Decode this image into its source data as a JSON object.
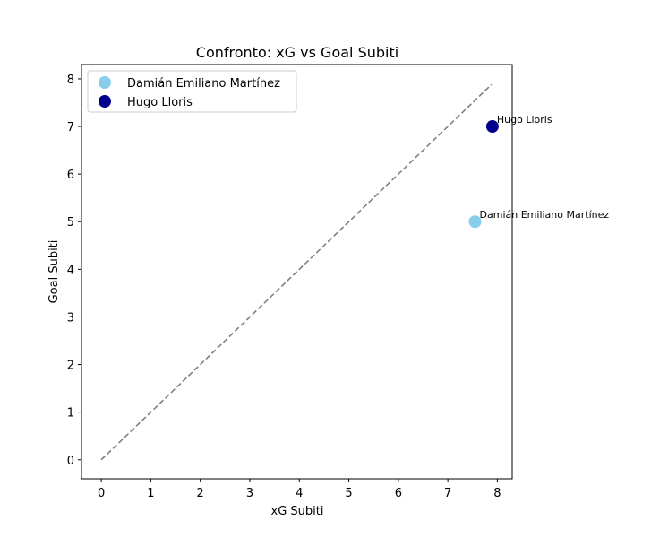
{
  "chart_data": {
    "type": "scatter",
    "title": "Confronto: xG vs Goal Subiti",
    "xlabel": "xG Subiti",
    "ylabel": "Goal Subiti",
    "xlim": [
      -0.4,
      8.3
    ],
    "ylim": [
      -0.4,
      8.3
    ],
    "xticks": [
      0,
      1,
      2,
      3,
      4,
      5,
      6,
      7,
      8
    ],
    "yticks": [
      0,
      1,
      2,
      3,
      4,
      5,
      6,
      7,
      8
    ],
    "grid": false,
    "legend_position": "upper-left",
    "reference_line": {
      "style": "dashed",
      "color": "#808080",
      "from": [
        0,
        0
      ],
      "to": [
        7.88,
        7.88
      ]
    },
    "series": [
      {
        "name": "Damián Emiliano Martínez",
        "color": "#87CEEB",
        "points": [
          {
            "x": 7.55,
            "y": 5,
            "label": "Damián Emiliano Martínez"
          }
        ]
      },
      {
        "name": "Hugo Lloris",
        "color": "#00008B",
        "points": [
          {
            "x": 7.9,
            "y": 7,
            "label": "Hugo Lloris"
          }
        ]
      }
    ]
  }
}
